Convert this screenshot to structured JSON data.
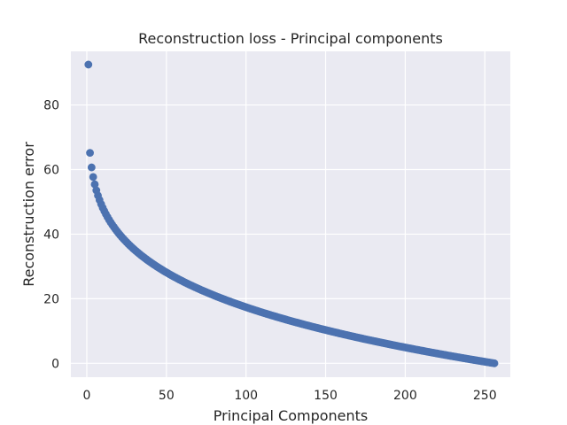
{
  "chart_data": {
    "type": "scatter",
    "title": "Reconstruction loss - Principal components",
    "xlabel": "Principal Components",
    "ylabel": "Reconstruction error",
    "xlim": [
      -10,
      266
    ],
    "ylim": [
      -4.3,
      96.6
    ],
    "xticks": [
      0,
      50,
      100,
      150,
      200,
      250
    ],
    "yticks": [
      0,
      20,
      40,
      60,
      80
    ],
    "grid": true,
    "background_color": "#EAEAF2",
    "grid_color": "#FFFFFF",
    "point_color": "#4C72B0",
    "series": [
      {
        "x_start": 1,
        "x_end": 256,
        "x_step": 1,
        "y_start": 92.5,
        "y_end": 0.0,
        "curve_exponent": 0.22
      }
    ]
  }
}
